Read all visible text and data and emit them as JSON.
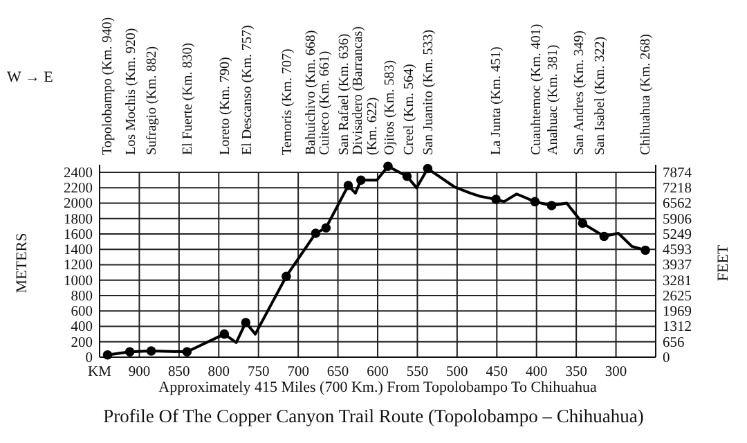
{
  "chart_data": {
    "type": "line",
    "title": "Profile Of The Copper Canyon Trail Route (Topolobampo – Chihuahua)",
    "xlabel": "Approximately 415 Miles (700 Km.) From Topolobampo To Chihuahua",
    "ylabel": "METERS",
    "y2label": "FEET",
    "xlim": [
      950,
      250
    ],
    "xticks": [
      {
        "value": 950,
        "label": "KM"
      },
      900,
      850,
      800,
      750,
      700,
      650,
      600,
      550,
      500,
      450,
      400,
      350,
      300,
      {
        "value": 250,
        "label": null
      }
    ],
    "ylim": [
      0,
      2500
    ],
    "yticks": [
      0,
      200,
      400,
      600,
      800,
      1000,
      1200,
      1400,
      1600,
      1800,
      2000,
      2200,
      2400
    ],
    "y2lim": [
      0,
      8202
    ],
    "y2ticks": [
      0,
      656,
      1312,
      1969,
      2625,
      3281,
      3937,
      4593,
      5249,
      5906,
      6562,
      7218,
      7874
    ],
    "grid": true,
    "series": [
      {
        "type": "line",
        "color": "#000000",
        "marker": "none",
        "x": [
          940,
          912,
          885,
          840,
          793,
          778,
          766,
          754,
          715,
          678,
          665,
          637,
          628,
          621,
          601,
          587,
          563,
          551,
          537,
          503,
          483,
          471,
          451,
          441,
          425,
          402,
          381,
          362,
          342,
          315,
          297,
          280,
          263
        ],
        "values": [
          30,
          70,
          80,
          70,
          300,
          190,
          450,
          300,
          1050,
          1610,
          1680,
          2230,
          2130,
          2300,
          2300,
          2480,
          2350,
          2200,
          2450,
          2210,
          2130,
          2090,
          2050,
          2020,
          2120,
          2020,
          1970,
          2000,
          1740,
          1570,
          1610,
          1440,
          1390
        ]
      },
      {
        "type": "scatter",
        "color": "#000000",
        "marker": "circle",
        "x": [
          940,
          912,
          885,
          840,
          793,
          766,
          715,
          678,
          665,
          637,
          621,
          587,
          563,
          537,
          451,
          402,
          381,
          342,
          315,
          263
        ],
        "values": [
          30,
          70,
          80,
          70,
          300,
          450,
          1050,
          1610,
          1680,
          2230,
          2300,
          2480,
          2350,
          2450,
          2050,
          2020,
          1970,
          1740,
          1570,
          1390
        ]
      }
    ],
    "annotations": [
      "W → E",
      "Topolobampo (Km. 940)",
      "Los Mochis (Km. 920)",
      "Sufragio (Km. 882)",
      "El Fuerte (Km. 830)",
      "Loreto (Km. 790)",
      "El Descanso (Km. 757)",
      "Temoris (Km. 707)",
      "Bahuichivo (Km. 668)",
      "Cuiteco (Km. 661)",
      "San Rafael (Km. 636)",
      "Divisadero (Barrancas) (Km. 622)",
      "Ojitos (Km. 583)",
      "Creel (Km. 564)",
      "San Juanito (Km. 533)",
      "La Junta (Km. 451)",
      "Cuauhtemoc (Km. 401)",
      "Anahuac (Km. 381)",
      "San Andres (Km. 349)",
      "San Isabel (Km. 322)",
      "Chihuahua (Km. 268)"
    ]
  }
}
